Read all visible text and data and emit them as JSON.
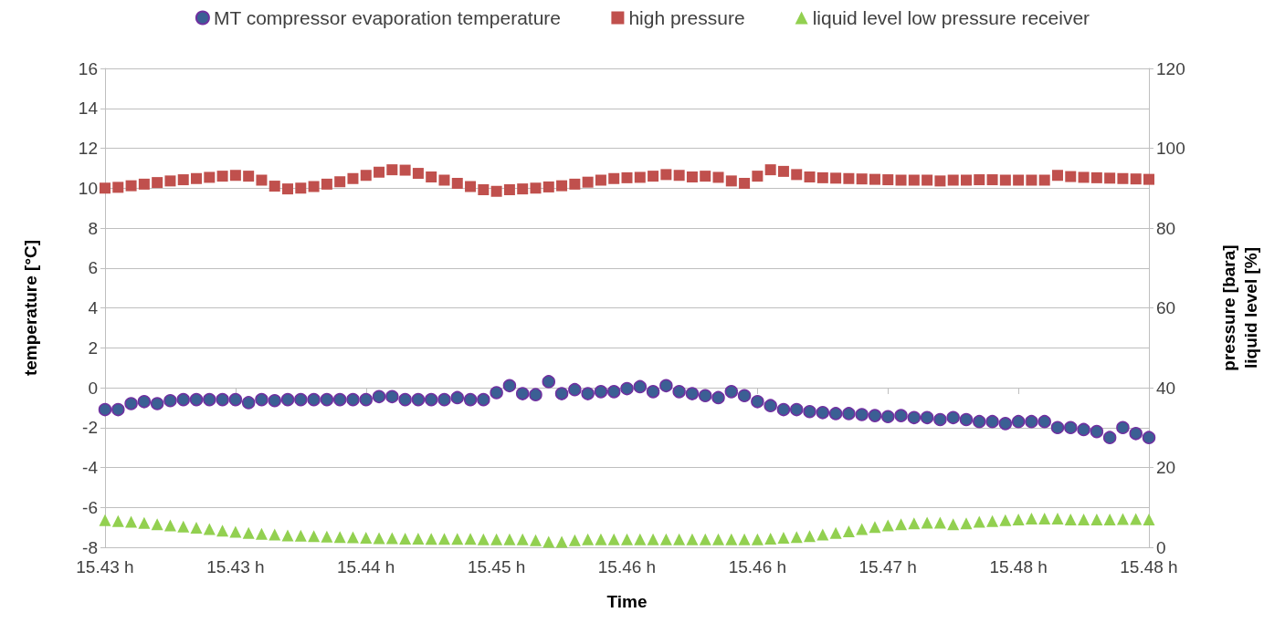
{
  "chart_data": {
    "type": "scatter",
    "xlabel": "Time",
    "ylabel": "temperature [°C]",
    "y2label": "pressure [bara]\nliquid level [%]",
    "categories": [
      "15.43 h",
      null,
      null,
      null,
      null,
      null,
      null,
      null,
      null,
      null,
      "15.43 h",
      null,
      null,
      null,
      null,
      null,
      null,
      null,
      null,
      null,
      "15.44 h",
      null,
      null,
      null,
      null,
      null,
      null,
      null,
      null,
      null,
      "15.45 h",
      null,
      null,
      null,
      null,
      null,
      null,
      null,
      null,
      null,
      "15.46 h",
      null,
      null,
      null,
      null,
      null,
      null,
      null,
      null,
      null,
      "15.46 h",
      null,
      null,
      null,
      null,
      null,
      null,
      null,
      null,
      null,
      "15.47 h",
      null,
      null,
      null,
      null,
      null,
      null,
      null,
      null,
      null,
      "15.48 h",
      null,
      null,
      null,
      null,
      null,
      null,
      null,
      null,
      null,
      "15.48 h"
    ],
    "ylim": [
      -8,
      16
    ],
    "yticks": [
      -8,
      -6,
      -4,
      -2,
      0,
      2,
      4,
      6,
      8,
      10,
      12,
      14,
      16
    ],
    "y2lim": [
      0,
      120
    ],
    "y2ticks": [
      0,
      20,
      40,
      60,
      80,
      100,
      120
    ],
    "grid": "y",
    "legend": "top",
    "series": [
      {
        "name": "MT compressor evaporation temperature",
        "color": "#3b5f94",
        "marker": "circle",
        "values": [
          -1.1,
          -1.1,
          -0.8,
          -0.7,
          -0.8,
          -0.65,
          -0.6,
          -0.6,
          -0.6,
          -0.6,
          -0.6,
          -0.75,
          -0.6,
          -0.65,
          -0.6,
          -0.6,
          -0.6,
          -0.6,
          -0.6,
          -0.6,
          -0.6,
          -0.45,
          -0.45,
          -0.6,
          -0.6,
          -0.6,
          -0.6,
          -0.5,
          -0.6,
          -0.6,
          -0.25,
          0.1,
          -0.3,
          -0.35,
          0.3,
          -0.3,
          -0.1,
          -0.3,
          -0.2,
          -0.2,
          -0.05,
          0.05,
          -0.2,
          0.1,
          -0.2,
          -0.3,
          -0.4,
          -0.5,
          -0.2,
          -0.4,
          -0.7,
          -0.9,
          -1.1,
          -1.1,
          -1.2,
          -1.25,
          -1.3,
          -1.3,
          -1.35,
          -1.4,
          -1.45,
          -1.4,
          -1.5,
          -1.5,
          -1.6,
          -1.5,
          -1.6,
          -1.7,
          -1.7,
          -1.8,
          -1.7,
          -1.7,
          -1.7,
          -2,
          -2,
          -2.1,
          -2.2,
          -2.5,
          -2,
          -2.3,
          -2.5
        ]
      },
      {
        "name": "high pressure",
        "color": "#c0504d",
        "marker": "square",
        "axis": "y2",
        "values": [
          90,
          90.2,
          90.6,
          91,
          91.4,
          91.8,
          92.1,
          92.4,
          92.7,
          93,
          93.2,
          93,
          92,
          90.5,
          89.8,
          90,
          90.4,
          91,
          91.6,
          92.4,
          93.2,
          94,
          94.6,
          94.5,
          93.7,
          92.8,
          92,
          91.2,
          90.4,
          89.6,
          89.2,
          89.6,
          89.8,
          90,
          90.3,
          90.6,
          91,
          91.5,
          92,
          92.4,
          92.6,
          92.7,
          93,
          93.4,
          93.2,
          92.8,
          93,
          92.7,
          91.8,
          91.2,
          93,
          94.6,
          94.2,
          93.4,
          92.8,
          92.6,
          92.5,
          92.4,
          92.3,
          92.2,
          92.1,
          92,
          92,
          92,
          91.8,
          92,
          92,
          92.1,
          92.1,
          92,
          92,
          92,
          92,
          93.2,
          92.9,
          92.7,
          92.6,
          92.5,
          92.4,
          92.3,
          92.2
        ]
      },
      {
        "name": "liquid level low pressure receiver",
        "color": "#92d050",
        "marker": "triangle",
        "axis": "y2",
        "values": [
          6.8,
          6.6,
          6.4,
          6.1,
          5.8,
          5.5,
          5.2,
          4.9,
          4.6,
          4.2,
          3.9,
          3.6,
          3.4,
          3.2,
          3,
          2.9,
          2.8,
          2.7,
          2.6,
          2.5,
          2.4,
          2.3,
          2.3,
          2.2,
          2.2,
          2.1,
          2.1,
          2.1,
          2.1,
          2,
          2,
          2,
          2,
          1.8,
          1.4,
          1.4,
          1.8,
          2,
          2,
          2,
          2,
          2,
          2,
          2,
          2,
          2,
          2,
          2,
          2,
          2,
          2,
          2.2,
          2.4,
          2.6,
          2.8,
          3.2,
          3.6,
          4,
          4.6,
          5.1,
          5.5,
          5.8,
          6,
          6.2,
          6.2,
          5.8,
          6,
          6.4,
          6.6,
          6.8,
          7,
          7.2,
          7.2,
          7.2,
          7,
          7,
          7,
          7,
          7.1,
          7.1,
          7
        ]
      }
    ]
  }
}
